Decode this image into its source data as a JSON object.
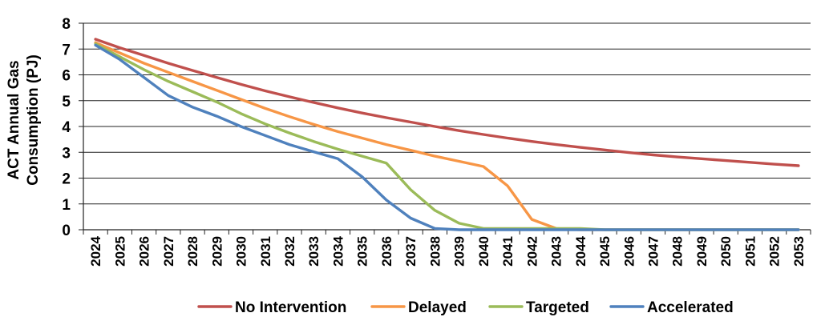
{
  "chart_data": {
    "type": "line",
    "title": "",
    "xlabel": "",
    "ylabel_lines": [
      "ACT Annual Gas",
      "Consumption (PJ)"
    ],
    "x": [
      "2024",
      "2025",
      "2026",
      "2027",
      "2028",
      "2029",
      "2030",
      "2031",
      "2032",
      "2033",
      "2034",
      "2035",
      "2036",
      "2037",
      "2038",
      "2039",
      "2040",
      "2041",
      "2042",
      "2043",
      "2044",
      "2045",
      "2046",
      "2047",
      "2048",
      "2049",
      "2050",
      "2051",
      "2052",
      "2053"
    ],
    "ylim": [
      0,
      8
    ],
    "yticks": [
      0,
      1,
      2,
      3,
      4,
      5,
      6,
      7,
      8
    ],
    "grid": true,
    "legend_position": "bottom",
    "series": [
      {
        "name": "No Intervention",
        "color": "#c0504d",
        "values": [
          7.38,
          7.05,
          6.75,
          6.45,
          6.17,
          5.9,
          5.63,
          5.38,
          5.15,
          4.93,
          4.72,
          4.52,
          4.34,
          4.17,
          4.0,
          3.84,
          3.69,
          3.55,
          3.42,
          3.3,
          3.19,
          3.09,
          2.99,
          2.9,
          2.82,
          2.75,
          2.68,
          2.61,
          2.54,
          2.48
        ]
      },
      {
        "name": "Delayed",
        "color": "#f79646",
        "values": [
          7.25,
          6.85,
          6.45,
          6.1,
          5.75,
          5.4,
          5.05,
          4.7,
          4.38,
          4.08,
          3.8,
          3.55,
          3.3,
          3.08,
          2.85,
          2.65,
          2.45,
          1.7,
          0.4,
          0.05,
          0.0,
          0.0,
          0.0,
          0.0,
          0.0,
          0.0,
          0.0,
          0.0,
          0.0,
          0.0
        ]
      },
      {
        "name": "Targeted",
        "color": "#9bbb59",
        "values": [
          7.2,
          6.7,
          6.2,
          5.75,
          5.35,
          4.95,
          4.5,
          4.1,
          3.75,
          3.42,
          3.12,
          2.85,
          2.58,
          1.55,
          0.75,
          0.25,
          0.05,
          0.05,
          0.05,
          0.05,
          0.05,
          0.0,
          0.0,
          0.0,
          0.0,
          0.0,
          0.0,
          0.0,
          0.0,
          0.0
        ]
      },
      {
        "name": "Accelerated",
        "color": "#4f81bd",
        "values": [
          7.15,
          6.6,
          5.9,
          5.2,
          4.75,
          4.4,
          4.0,
          3.65,
          3.3,
          3.02,
          2.75,
          2.05,
          1.15,
          0.45,
          0.05,
          0.0,
          0.0,
          0.0,
          0.0,
          0.0,
          0.0,
          0.0,
          0.0,
          0.0,
          0.0,
          0.0,
          0.0,
          0.0,
          0.0,
          0.0
        ]
      }
    ]
  }
}
